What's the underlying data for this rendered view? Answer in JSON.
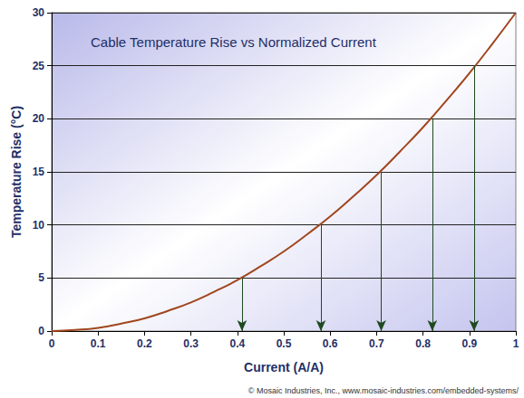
{
  "chart_data": {
    "type": "line",
    "title": "Cable Temperature Rise vs Normalized Current",
    "x_label": "Current (A/A)",
    "y_label": "Temperature Rise (°C)",
    "source": "© Mosaic Industries, Inc., www.mosaic-industries.com/embedded-systems/",
    "x": [
      0,
      0.05,
      0.1,
      0.15,
      0.2,
      0.25,
      0.3,
      0.35,
      0.4,
      0.45,
      0.5,
      0.55,
      0.6,
      0.65,
      0.7,
      0.75,
      0.8,
      0.85,
      0.9,
      0.95,
      1
    ],
    "values": [
      0,
      0.1,
      0.3,
      0.7,
      1.2,
      1.9,
      2.7,
      3.7,
      4.8,
      6.1,
      7.5,
      9.1,
      10.8,
      12.7,
      14.7,
      16.9,
      19.2,
      21.7,
      24.3,
      27.1,
      30
    ],
    "color": "#a0461e",
    "drop_arrows": {
      "x": [
        0.41,
        0.58,
        0.71,
        0.82,
        0.91
      ],
      "y": [
        5,
        10,
        15,
        20,
        25
      ],
      "color": "#1e4a1e"
    },
    "xlim": [
      0,
      1
    ],
    "xticks": [
      0,
      0.1,
      0.2,
      0.3,
      0.4,
      0.5,
      0.6,
      0.7,
      0.8,
      0.9,
      1
    ],
    "ylim": [
      0,
      30
    ],
    "yticks": [
      0,
      5,
      10,
      15,
      20,
      25,
      30
    ],
    "grid": true
  }
}
